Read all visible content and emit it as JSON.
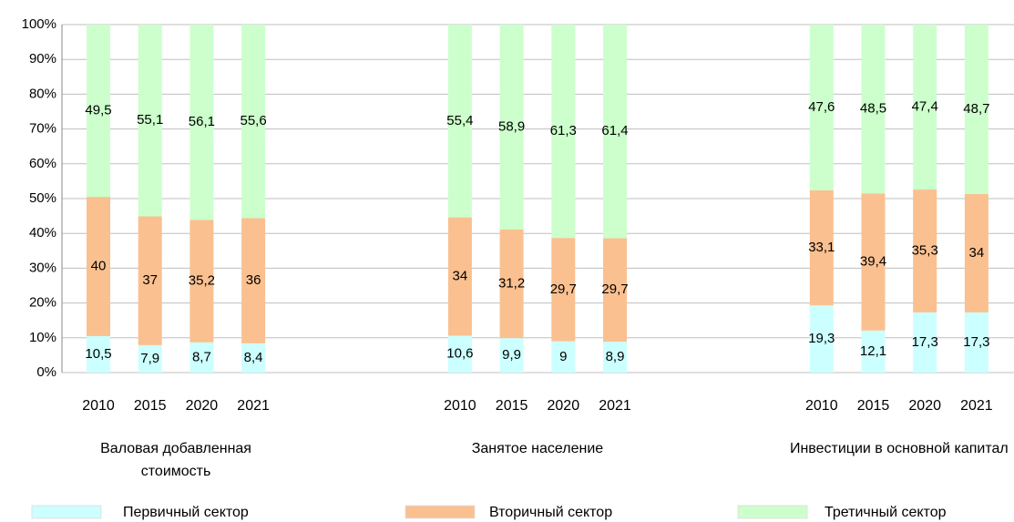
{
  "chart_data": {
    "type": "stacked_bar",
    "groups": [
      "Валовая добавленная стоимость",
      "Занятое население",
      "Инвестиции в основной капитал"
    ],
    "categories": [
      "2010",
      "2015",
      "2020",
      "2021",
      "2010",
      "2015",
      "2020",
      "2021",
      "2010",
      "2015",
      "2020",
      "2021"
    ],
    "series": [
      {
        "name": "Первичный сектор",
        "color": "#ccffff",
        "values": [
          10.5,
          7.9,
          8.7,
          8.4,
          10.6,
          9.9,
          9,
          8.9,
          19.3,
          12.1,
          17.3,
          17.3
        ],
        "value_labels": [
          "10,5",
          "7,9",
          "8,7",
          "8,4",
          "10,6",
          "9,9",
          "9",
          "8,9",
          "19,3",
          "12,1",
          "17,3",
          "17,3"
        ]
      },
      {
        "name": "Вторичный сектор",
        "color": "#fac090",
        "values": [
          40,
          37,
          35.2,
          36,
          34,
          31.2,
          29.7,
          29.7,
          33.1,
          39.4,
          35.3,
          34
        ],
        "value_labels": [
          "40",
          "37",
          "35,2",
          "36",
          "34",
          "31,2",
          "29,7",
          "29,7",
          "33,1",
          "39,4",
          "35,3",
          "34"
        ]
      },
      {
        "name": "Третичный сектор",
        "color": "#ccffcc",
        "values": [
          49.5,
          55.1,
          56.1,
          55.6,
          55.4,
          58.9,
          61.3,
          61.4,
          47.6,
          48.5,
          47.4,
          48.7
        ],
        "value_labels": [
          "49,5",
          "55,1",
          "56,1",
          "55,6",
          "55,4",
          "58,9",
          "61,3",
          "61,4",
          "47,6",
          "48,5",
          "47,4",
          "48,7"
        ]
      }
    ],
    "ylim": [
      0,
      100
    ],
    "yticks": [
      {
        "value": 0,
        "label": "0%"
      },
      {
        "value": 10,
        "label": "10%"
      },
      {
        "value": 20,
        "label": "20%"
      },
      {
        "value": 30,
        "label": "30%"
      },
      {
        "value": 40,
        "label": "40%"
      },
      {
        "value": 50,
        "label": "50%"
      },
      {
        "value": 60,
        "label": "60%"
      },
      {
        "value": 70,
        "label": "70%"
      },
      {
        "value": 80,
        "label": "80%"
      },
      {
        "value": 90,
        "label": "90%"
      },
      {
        "value": 100,
        "label": "100%"
      }
    ],
    "grid": true
  }
}
